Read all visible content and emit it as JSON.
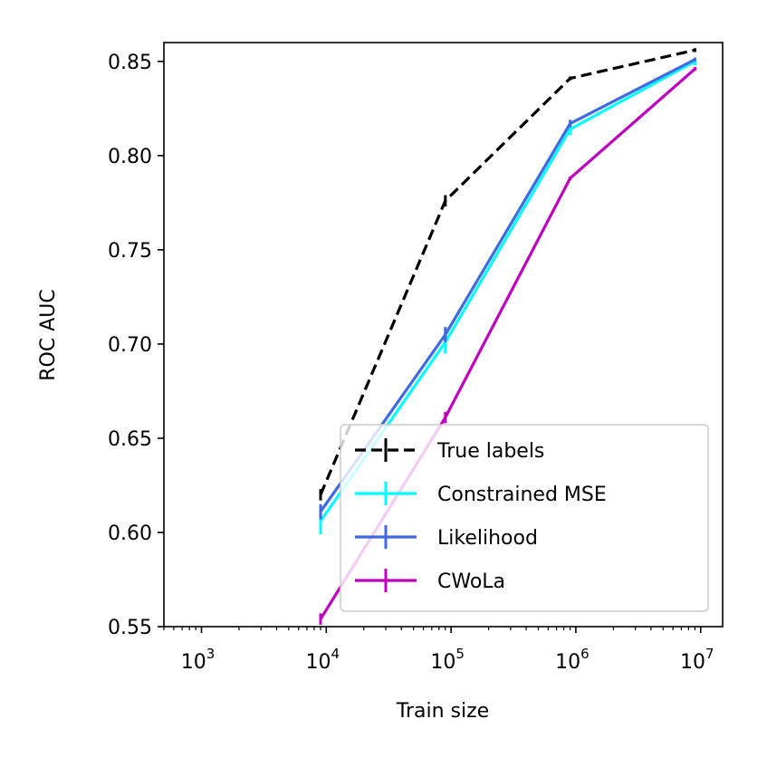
{
  "chart_data": {
    "type": "line",
    "title": "",
    "xlabel": "Train size",
    "ylabel": "ROC AUC",
    "xscale": "log",
    "xlim": [
      500,
      15000000
    ],
    "ylim": [
      0.55,
      0.86
    ],
    "yticks": [
      0.55,
      0.6,
      0.65,
      0.7,
      0.75,
      0.8,
      0.85
    ],
    "ytick_labels": [
      "0.55",
      "0.60",
      "0.65",
      "0.70",
      "0.75",
      "0.80",
      "0.85"
    ],
    "xticks": [
      {
        "value": 1000,
        "base": "10",
        "exp": "3"
      },
      {
        "value": 10000,
        "base": "10",
        "exp": "4"
      },
      {
        "value": 100000,
        "base": "10",
        "exp": "5"
      },
      {
        "value": 1000000,
        "base": "10",
        "exp": "6"
      },
      {
        "value": 10000000,
        "base": "10",
        "exp": "7"
      }
    ],
    "x": [
      9000,
      90000,
      900000,
      9000000
    ],
    "legend_position": "lower-right",
    "series": [
      {
        "name": "True labels",
        "color": "#000000",
        "dashed": true,
        "values": [
          0.62,
          0.776,
          0.841,
          0.856
        ],
        "errors": [
          0.003,
          0.003,
          0.001,
          0.001
        ]
      },
      {
        "name": "Constrained MSE",
        "color": "#00ffff",
        "dashed": false,
        "values": [
          0.606,
          0.701,
          0.814,
          0.85
        ],
        "errors": [
          0.007,
          0.006,
          0.003,
          0.002
        ]
      },
      {
        "name": "Likelihood",
        "color": "#4169e1",
        "dashed": false,
        "values": [
          0.611,
          0.705,
          0.817,
          0.851
        ],
        "errors": [
          0.004,
          0.004,
          0.002,
          0.001
        ]
      },
      {
        "name": "CWoLa",
        "color": "#bf00bf",
        "dashed": false,
        "values": [
          0.554,
          0.661,
          0.788,
          0.846
        ],
        "errors": [
          0.003,
          0.003,
          0.001,
          0.001
        ]
      }
    ]
  }
}
